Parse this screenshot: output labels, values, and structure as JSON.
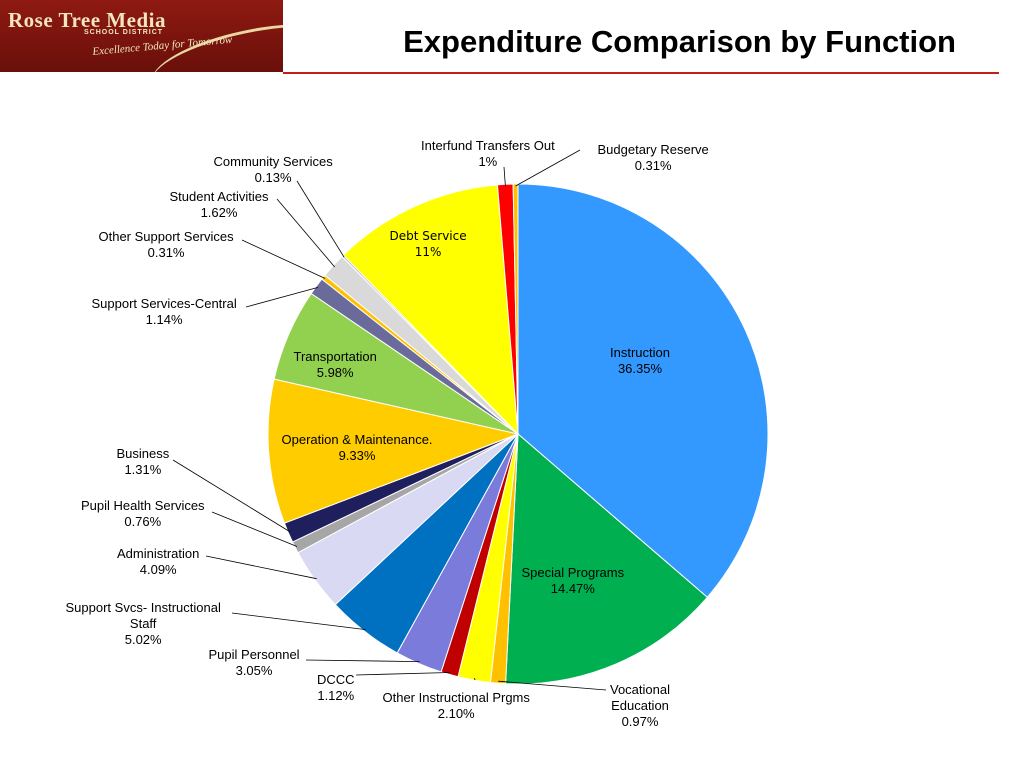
{
  "logo": {
    "name": "Rose Tree Media",
    "sub": "SCHOOL DISTRICT",
    "tagline": "Excellence Today for Tomorrow"
  },
  "title": "Expenditure Comparison by Function",
  "chart_data": {
    "type": "pie",
    "title": "Expenditure Comparison by Function",
    "unit": "%",
    "start_angle_deg": 0,
    "direction": "clockwise",
    "slices": [
      {
        "name": "Instruction",
        "value": 36.35,
        "label": "36.35%",
        "color": "#3399ff"
      },
      {
        "name": "Special Programs",
        "value": 14.47,
        "label": "14.47%",
        "color": "#00b050"
      },
      {
        "name": "Vocational Education",
        "value": 0.97,
        "label": "0.97%",
        "color": "#ffc000"
      },
      {
        "name": "Other Instructional Prgms",
        "value": 2.1,
        "label": "2.10%",
        "color": "#ffff00"
      },
      {
        "name": "DCCC",
        "value": 1.12,
        "label": "1.12%",
        "color": "#c00000"
      },
      {
        "name": "Pupil Personnel",
        "value": 3.05,
        "label": "3.05%",
        "color": "#7b7bdb"
      },
      {
        "name": "Support Svcs- Instructional Staff",
        "value": 5.02,
        "label": "5.02%",
        "color": "#0070c0"
      },
      {
        "name": "Administration",
        "value": 4.09,
        "label": "4.09%",
        "color": "#d9d9f3"
      },
      {
        "name": "Pupil Health Services",
        "value": 0.76,
        "label": "0.76%",
        "color": "#a6a6a6"
      },
      {
        "name": "Business",
        "value": 1.31,
        "label": "1.31%",
        "color": "#1f1f5e"
      },
      {
        "name": "Operation & Maintenance.",
        "value": 9.33,
        "label": "9.33%",
        "color": "#ffcc00"
      },
      {
        "name": "Transportation",
        "value": 5.98,
        "label": "5.98%",
        "color": "#92d050"
      },
      {
        "name": "Support Services-Central",
        "value": 1.14,
        "label": "1.14%",
        "color": "#6b6b9b"
      },
      {
        "name": "Other Support Services",
        "value": 0.31,
        "label": "0.31%",
        "color": "#ffc000"
      },
      {
        "name": "Student Activities",
        "value": 1.62,
        "label": "1.62%",
        "color": "#d9d9d9"
      },
      {
        "name": "Community Services",
        "value": 0.13,
        "label": "0.13%",
        "color": "#bfbfbf"
      },
      {
        "name": "Debt Service",
        "value": 11.0,
        "label": "11%",
        "color": "#ffff00"
      },
      {
        "name": "Interfund Transfers Out",
        "value": 1.0,
        "label": "1%",
        "color": "#ff0000"
      },
      {
        "name": "Budgetary Reserve",
        "value": 0.31,
        "label": "0.31%",
        "color": "#ffc000"
      }
    ]
  }
}
